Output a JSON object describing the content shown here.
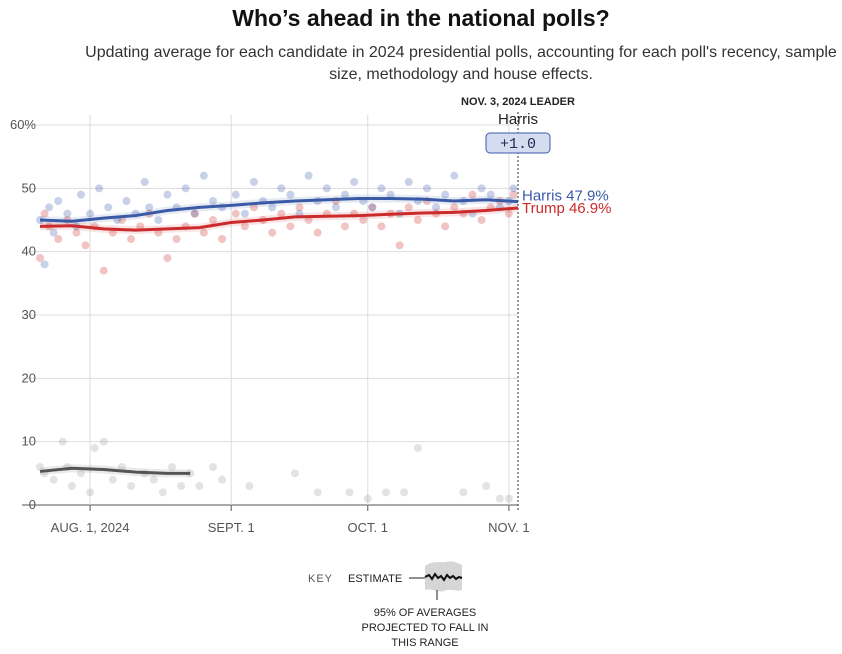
{
  "header": {
    "title": "Who’s ahead in the national polls?",
    "subtitle": "Updating average for each candidate in 2024 presidential polls, accounting for each poll's recency, sample size, methodology and house effects."
  },
  "leader_box": {
    "heading": "NOV. 3, 2024 LEADER",
    "name": "Harris",
    "margin": "+1.0"
  },
  "key": {
    "label": "KEY",
    "estimate": "ESTIMATE",
    "note_lines": [
      "95% OF AVERAGES",
      "PROJECTED TO FALL IN",
      "THIS RANGE"
    ]
  },
  "colors": {
    "harris": "#3a5aa8",
    "trump": "#cc2b2b",
    "other": "#555555"
  },
  "chart_data": {
    "type": "line",
    "title": "Who’s ahead in the national polls?",
    "x_start_label": "2024-07-21",
    "x_end_label": "2024-11-03",
    "xticks": [
      {
        "date": "2024-08-01",
        "label": "AUG. 1, 2024"
      },
      {
        "date": "2024-09-01",
        "label": "SEPT. 1"
      },
      {
        "date": "2024-10-01",
        "label": "OCT. 1"
      },
      {
        "date": "2024-11-01",
        "label": "NOV. 1"
      }
    ],
    "yticks": [
      {
        "value": 0,
        "label": "0"
      },
      {
        "value": 10,
        "label": "10"
      },
      {
        "value": 20,
        "label": "20"
      },
      {
        "value": 30,
        "label": "30"
      },
      {
        "value": 40,
        "label": "40"
      },
      {
        "value": 50,
        "label": "50"
      },
      {
        "value": 60,
        "label": "60%"
      }
    ],
    "ylim": [
      0,
      60
    ],
    "grid": true,
    "series": [
      {
        "name": "Harris",
        "end_label": "Harris 47.9%",
        "color": "#3a5aa8",
        "x": [
          "2024-07-21",
          "2024-07-28",
          "2024-08-04",
          "2024-08-11",
          "2024-08-18",
          "2024-08-25",
          "2024-09-01",
          "2024-09-08",
          "2024-09-15",
          "2024-09-22",
          "2024-09-29",
          "2024-10-06",
          "2024-10-13",
          "2024-10-20",
          "2024-10-27",
          "2024-11-03"
        ],
        "values": [
          45.0,
          44.8,
          45.3,
          45.7,
          46.5,
          47.0,
          47.3,
          47.7,
          48.0,
          48.2,
          48.4,
          48.4,
          48.3,
          48.0,
          48.2,
          47.9
        ]
      },
      {
        "name": "Trump",
        "end_label": "Trump 46.9%",
        "color": "#cc2b2b",
        "x": [
          "2024-07-21",
          "2024-07-28",
          "2024-08-04",
          "2024-08-11",
          "2024-08-18",
          "2024-08-25",
          "2024-09-01",
          "2024-09-08",
          "2024-09-15",
          "2024-09-22",
          "2024-09-29",
          "2024-10-06",
          "2024-10-13",
          "2024-10-20",
          "2024-10-27",
          "2024-11-03"
        ],
        "values": [
          44.0,
          44.1,
          43.6,
          43.4,
          43.6,
          43.8,
          44.6,
          45.0,
          45.5,
          45.6,
          45.7,
          45.9,
          46.1,
          46.2,
          46.5,
          46.9
        ]
      },
      {
        "name": "",
        "color": "#555555",
        "x": [
          "2024-07-21",
          "2024-07-28",
          "2024-08-04",
          "2024-08-11",
          "2024-08-18",
          "2024-08-23"
        ],
        "values": [
          5.3,
          5.8,
          5.6,
          5.2,
          5.0,
          5.0
        ]
      }
    ],
    "polls": {
      "harris": [
        [
          "2024-07-21",
          45
        ],
        [
          "2024-07-22",
          38
        ],
        [
          "2024-07-23",
          47
        ],
        [
          "2024-07-24",
          43
        ],
        [
          "2024-07-25",
          48
        ],
        [
          "2024-07-27",
          46
        ],
        [
          "2024-07-29",
          44
        ],
        [
          "2024-07-30",
          49
        ],
        [
          "2024-08-01",
          46
        ],
        [
          "2024-08-03",
          50
        ],
        [
          "2024-08-05",
          47
        ],
        [
          "2024-08-07",
          45
        ],
        [
          "2024-08-09",
          48
        ],
        [
          "2024-08-11",
          46
        ],
        [
          "2024-08-13",
          51
        ],
        [
          "2024-08-14",
          47
        ],
        [
          "2024-08-16",
          45
        ],
        [
          "2024-08-18",
          49
        ],
        [
          "2024-08-20",
          47
        ],
        [
          "2024-08-22",
          50
        ],
        [
          "2024-08-24",
          46
        ],
        [
          "2024-08-26",
          52
        ],
        [
          "2024-08-28",
          48
        ],
        [
          "2024-08-30",
          47
        ],
        [
          "2024-09-02",
          49
        ],
        [
          "2024-09-04",
          46
        ],
        [
          "2024-09-06",
          51
        ],
        [
          "2024-09-08",
          48
        ],
        [
          "2024-09-10",
          47
        ],
        [
          "2024-09-12",
          50
        ],
        [
          "2024-09-14",
          49
        ],
        [
          "2024-09-16",
          46
        ],
        [
          "2024-09-18",
          52
        ],
        [
          "2024-09-20",
          48
        ],
        [
          "2024-09-22",
          50
        ],
        [
          "2024-09-24",
          47
        ],
        [
          "2024-09-26",
          49
        ],
        [
          "2024-09-28",
          51
        ],
        [
          "2024-09-30",
          48
        ],
        [
          "2024-10-02",
          47
        ],
        [
          "2024-10-04",
          50
        ],
        [
          "2024-10-06",
          49
        ],
        [
          "2024-10-08",
          46
        ],
        [
          "2024-10-10",
          51
        ],
        [
          "2024-10-12",
          48
        ],
        [
          "2024-10-14",
          50
        ],
        [
          "2024-10-16",
          47
        ],
        [
          "2024-10-18",
          49
        ],
        [
          "2024-10-20",
          52
        ],
        [
          "2024-10-22",
          48
        ],
        [
          "2024-10-24",
          46
        ],
        [
          "2024-10-26",
          50
        ],
        [
          "2024-10-28",
          49
        ],
        [
          "2024-10-30",
          47
        ],
        [
          "2024-11-01",
          48
        ],
        [
          "2024-11-02",
          50
        ]
      ],
      "trump": [
        [
          "2024-07-21",
          39
        ],
        [
          "2024-07-22",
          46
        ],
        [
          "2024-07-23",
          44
        ],
        [
          "2024-07-25",
          42
        ],
        [
          "2024-07-27",
          45
        ],
        [
          "2024-07-29",
          43
        ],
        [
          "2024-07-31",
          41
        ],
        [
          "2024-08-02",
          44
        ],
        [
          "2024-08-04",
          37
        ],
        [
          "2024-08-06",
          43
        ],
        [
          "2024-08-08",
          45
        ],
        [
          "2024-08-10",
          42
        ],
        [
          "2024-08-12",
          44
        ],
        [
          "2024-08-14",
          46
        ],
        [
          "2024-08-16",
          43
        ],
        [
          "2024-08-18",
          39
        ],
        [
          "2024-08-20",
          42
        ],
        [
          "2024-08-22",
          44
        ],
        [
          "2024-08-24",
          46
        ],
        [
          "2024-08-26",
          43
        ],
        [
          "2024-08-28",
          45
        ],
        [
          "2024-08-30",
          42
        ],
        [
          "2024-09-02",
          46
        ],
        [
          "2024-09-04",
          44
        ],
        [
          "2024-09-06",
          47
        ],
        [
          "2024-09-08",
          45
        ],
        [
          "2024-09-10",
          43
        ],
        [
          "2024-09-12",
          46
        ],
        [
          "2024-09-14",
          44
        ],
        [
          "2024-09-16",
          47
        ],
        [
          "2024-09-18",
          45
        ],
        [
          "2024-09-20",
          43
        ],
        [
          "2024-09-22",
          46
        ],
        [
          "2024-09-24",
          48
        ],
        [
          "2024-09-26",
          44
        ],
        [
          "2024-09-28",
          46
        ],
        [
          "2024-09-30",
          45
        ],
        [
          "2024-10-02",
          47
        ],
        [
          "2024-10-04",
          44
        ],
        [
          "2024-10-06",
          46
        ],
        [
          "2024-10-08",
          41
        ],
        [
          "2024-10-10",
          47
        ],
        [
          "2024-10-12",
          45
        ],
        [
          "2024-10-14",
          48
        ],
        [
          "2024-10-16",
          46
        ],
        [
          "2024-10-18",
          44
        ],
        [
          "2024-10-20",
          47
        ],
        [
          "2024-10-22",
          46
        ],
        [
          "2024-10-24",
          49
        ],
        [
          "2024-10-26",
          45
        ],
        [
          "2024-10-28",
          47
        ],
        [
          "2024-10-30",
          48
        ],
        [
          "2024-11-01",
          46
        ],
        [
          "2024-11-02",
          49
        ]
      ],
      "other": [
        [
          "2024-07-21",
          6
        ],
        [
          "2024-07-22",
          5
        ],
        [
          "2024-07-24",
          4
        ],
        [
          "2024-07-26",
          10
        ],
        [
          "2024-07-27",
          6
        ],
        [
          "2024-07-28",
          3
        ],
        [
          "2024-07-30",
          5
        ],
        [
          "2024-08-01",
          2
        ],
        [
          "2024-08-02",
          9
        ],
        [
          "2024-08-04",
          10
        ],
        [
          "2024-08-06",
          4
        ],
        [
          "2024-08-08",
          6
        ],
        [
          "2024-08-10",
          3
        ],
        [
          "2024-08-13",
          5
        ],
        [
          "2024-08-15",
          4
        ],
        [
          "2024-08-17",
          2
        ],
        [
          "2024-08-19",
          6
        ],
        [
          "2024-08-21",
          3
        ],
        [
          "2024-08-23",
          5
        ],
        [
          "2024-08-25",
          3
        ],
        [
          "2024-08-28",
          6
        ],
        [
          "2024-08-30",
          4
        ],
        [
          "2024-09-05",
          3
        ],
        [
          "2024-09-15",
          5
        ],
        [
          "2024-09-20",
          2
        ],
        [
          "2024-09-27",
          2
        ],
        [
          "2024-10-01",
          1
        ],
        [
          "2024-10-05",
          2
        ],
        [
          "2024-10-09",
          2
        ],
        [
          "2024-10-12",
          9
        ],
        [
          "2024-10-22",
          2
        ],
        [
          "2024-10-27",
          3
        ],
        [
          "2024-10-30",
          1
        ],
        [
          "2024-11-01",
          1
        ]
      ]
    }
  }
}
